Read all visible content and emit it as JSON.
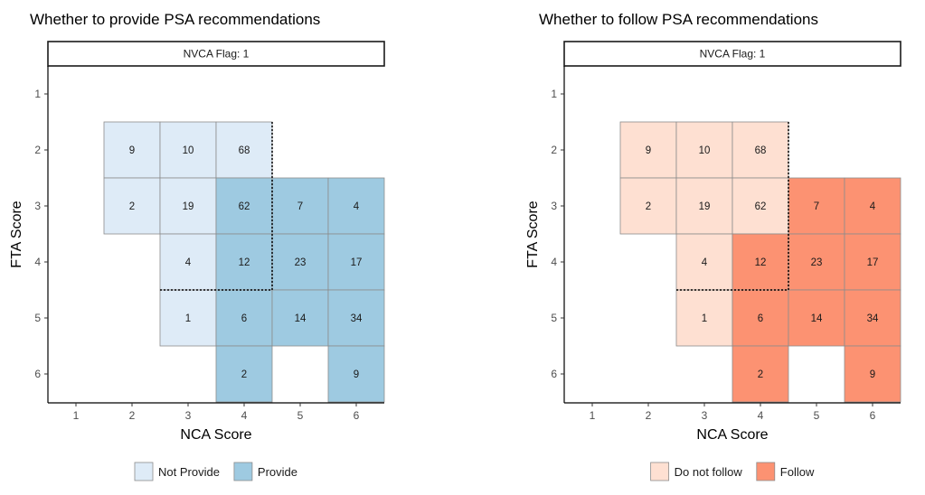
{
  "chart_data": [
    {
      "type": "heatmap",
      "title": "Whether to provide PSA recommendations",
      "facet_label": "NVCA Flag: 1",
      "xlabel": "NCA Score",
      "ylabel": "FTA Score",
      "x_ticks": [
        "1",
        "2",
        "3",
        "4",
        "5",
        "6"
      ],
      "y_ticks": [
        "1",
        "2",
        "3",
        "4",
        "5",
        "6"
      ],
      "xlim": [
        1,
        6
      ],
      "ylim": [
        1,
        6
      ],
      "grid": false,
      "legend_position": "bottom",
      "categories": [
        "Not Provide",
        "Provide"
      ],
      "colors": {
        "Not Provide": "#deebf7",
        "Provide": "#9ecae1"
      },
      "cells": [
        {
          "nca": 2,
          "fta": 2,
          "count": "9",
          "category": "Not Provide"
        },
        {
          "nca": 3,
          "fta": 2,
          "count": "10",
          "category": "Not Provide"
        },
        {
          "nca": 4,
          "fta": 2,
          "count": "68",
          "category": "Not Provide"
        },
        {
          "nca": 2,
          "fta": 3,
          "count": "2",
          "category": "Not Provide"
        },
        {
          "nca": 3,
          "fta": 3,
          "count": "19",
          "category": "Not Provide"
        },
        {
          "nca": 4,
          "fta": 3,
          "count": "62",
          "category": "Provide"
        },
        {
          "nca": 5,
          "fta": 3,
          "count": "7",
          "category": "Provide"
        },
        {
          "nca": 6,
          "fta": 3,
          "count": "4",
          "category": "Provide"
        },
        {
          "nca": 3,
          "fta": 4,
          "count": "4",
          "category": "Not Provide"
        },
        {
          "nca": 4,
          "fta": 4,
          "count": "12",
          "category": "Provide"
        },
        {
          "nca": 5,
          "fta": 4,
          "count": "23",
          "category": "Provide"
        },
        {
          "nca": 6,
          "fta": 4,
          "count": "17",
          "category": "Provide"
        },
        {
          "nca": 3,
          "fta": 5,
          "count": "1",
          "category": "Not Provide"
        },
        {
          "nca": 4,
          "fta": 5,
          "count": "6",
          "category": "Provide"
        },
        {
          "nca": 5,
          "fta": 5,
          "count": "14",
          "category": "Provide"
        },
        {
          "nca": 6,
          "fta": 5,
          "count": "34",
          "category": "Provide"
        },
        {
          "nca": 4,
          "fta": 6,
          "count": "2",
          "category": "Provide"
        },
        {
          "nca": 6,
          "fta": 6,
          "count": "9",
          "category": "Provide"
        }
      ],
      "dotted_boundary": [
        [
          4.5,
          1.5
        ],
        [
          4.5,
          4.5
        ],
        [
          2.5,
          4.5
        ]
      ]
    },
    {
      "type": "heatmap",
      "title": "Whether to follow PSA recommendations",
      "facet_label": "NVCA Flag: 1",
      "xlabel": "NCA Score",
      "ylabel": "FTA Score",
      "x_ticks": [
        "1",
        "2",
        "3",
        "4",
        "5",
        "6"
      ],
      "y_ticks": [
        "1",
        "2",
        "3",
        "4",
        "5",
        "6"
      ],
      "xlim": [
        1,
        6
      ],
      "ylim": [
        1,
        6
      ],
      "grid": false,
      "legend_position": "bottom",
      "categories": [
        "Do not follow",
        "Follow"
      ],
      "colors": {
        "Do not follow": "#fee0d2",
        "Follow": "#fc9272"
      },
      "cells": [
        {
          "nca": 2,
          "fta": 2,
          "count": "9",
          "category": "Do not follow"
        },
        {
          "nca": 3,
          "fta": 2,
          "count": "10",
          "category": "Do not follow"
        },
        {
          "nca": 4,
          "fta": 2,
          "count": "68",
          "category": "Do not follow"
        },
        {
          "nca": 2,
          "fta": 3,
          "count": "2",
          "category": "Do not follow"
        },
        {
          "nca": 3,
          "fta": 3,
          "count": "19",
          "category": "Do not follow"
        },
        {
          "nca": 4,
          "fta": 3,
          "count": "62",
          "category": "Do not follow"
        },
        {
          "nca": 5,
          "fta": 3,
          "count": "7",
          "category": "Follow"
        },
        {
          "nca": 6,
          "fta": 3,
          "count": "4",
          "category": "Follow"
        },
        {
          "nca": 3,
          "fta": 4,
          "count": "4",
          "category": "Do not follow"
        },
        {
          "nca": 4,
          "fta": 4,
          "count": "12",
          "category": "Follow"
        },
        {
          "nca": 5,
          "fta": 4,
          "count": "23",
          "category": "Follow"
        },
        {
          "nca": 6,
          "fta": 4,
          "count": "17",
          "category": "Follow"
        },
        {
          "nca": 3,
          "fta": 5,
          "count": "1",
          "category": "Do not follow"
        },
        {
          "nca": 4,
          "fta": 5,
          "count": "6",
          "category": "Follow"
        },
        {
          "nca": 5,
          "fta": 5,
          "count": "14",
          "category": "Follow"
        },
        {
          "nca": 6,
          "fta": 5,
          "count": "34",
          "category": "Follow"
        },
        {
          "nca": 4,
          "fta": 6,
          "count": "2",
          "category": "Follow"
        },
        {
          "nca": 6,
          "fta": 6,
          "count": "9",
          "category": "Follow"
        }
      ],
      "dotted_boundary": [
        [
          4.5,
          1.5
        ],
        [
          4.5,
          4.5
        ],
        [
          2.5,
          4.5
        ]
      ]
    }
  ]
}
